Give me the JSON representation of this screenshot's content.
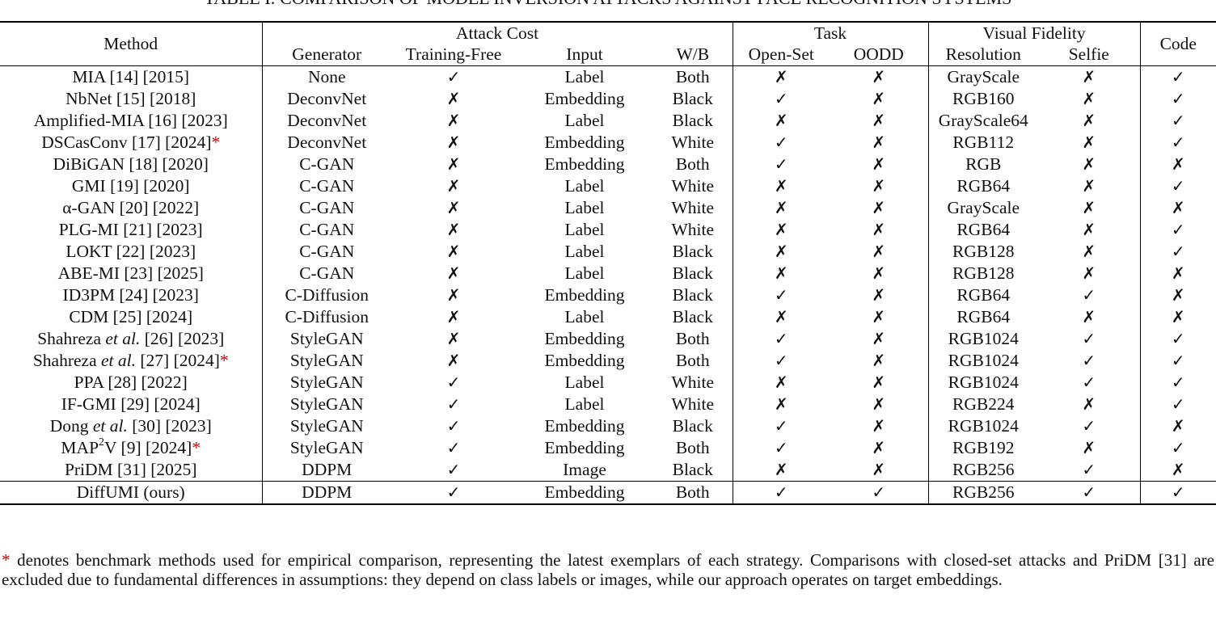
{
  "caption_fragment": "TABLE I: COMPARISON OF MODEL INVERSION ATTACKS AGAINST FACE RECOGNITION SYSTEMS",
  "headers": {
    "method": "Method",
    "attack_cost": "Attack Cost",
    "task": "Task",
    "visual_fidelity": "Visual Fidelity",
    "code": "Code",
    "generator": "Generator",
    "training_free": "Training-Free",
    "input": "Input",
    "wb": "W/B",
    "open_set": "Open-Set",
    "oodd": "OODD",
    "resolution": "Resolution",
    "selfie": "Selfie"
  },
  "symbols": {
    "yes": "✓",
    "no": "✗",
    "star": "*"
  },
  "rows": [
    {
      "m1": "MIA [14] [2015]",
      "gen": "None",
      "tf": "✓",
      "input": "Label",
      "wb": "Both",
      "open": "✗",
      "oodd": "✗",
      "res": "GrayScale",
      "selfie": "✗",
      "code": "✓"
    },
    {
      "m1": "NbNet [15] [2018]",
      "gen": "DeconvNet",
      "tf": "✗",
      "input": "Embedding",
      "wb": "Black",
      "open": "✓",
      "oodd": "✗",
      "res": "RGB160",
      "selfie": "✗",
      "code": "✓"
    },
    {
      "m1": "Amplified-MIA [16] [2023]",
      "gen": "DeconvNet",
      "tf": "✗",
      "input": "Label",
      "wb": "Black",
      "open": "✗",
      "oodd": "✗",
      "res": "GrayScale64",
      "selfie": "✗",
      "code": "✓"
    },
    {
      "m1": "DSCasConv [17] [2024]",
      "gen": "DeconvNet",
      "tf": "✗",
      "input": "Embedding",
      "wb": "White",
      "open": "✓",
      "oodd": "✗",
      "res": "RGB112",
      "selfie": "✗",
      "code": "✓"
    },
    {
      "m1": "DiBiGAN [18] [2020]",
      "gen": "C-GAN",
      "tf": "✗",
      "input": "Embedding",
      "wb": "Both",
      "open": "✓",
      "oodd": "✗",
      "res": "RGB",
      "selfie": "✗",
      "code": "✗"
    },
    {
      "m1": "GMI [19] [2020]",
      "gen": "C-GAN",
      "tf": "✗",
      "input": "Label",
      "wb": "White",
      "open": "✗",
      "oodd": "✗",
      "res": "RGB64",
      "selfie": "✗",
      "code": "✓"
    },
    {
      "m1": "α-GAN [20] [2022]",
      "gen": "C-GAN",
      "tf": "✗",
      "input": "Label",
      "wb": "White",
      "open": "✗",
      "oodd": "✗",
      "res": "GrayScale",
      "selfie": "✗",
      "code": "✗"
    },
    {
      "m1": "PLG-MI [21] [2023]",
      "gen": "C-GAN",
      "tf": "✗",
      "input": "Label",
      "wb": "White",
      "open": "✗",
      "oodd": "✗",
      "res": "RGB64",
      "selfie": "✗",
      "code": "✓"
    },
    {
      "m1": "LOKT [22] [2023]",
      "gen": "C-GAN",
      "tf": "✗",
      "input": "Label",
      "wb": "Black",
      "open": "✗",
      "oodd": "✗",
      "res": "RGB128",
      "selfie": "✗",
      "code": "✓"
    },
    {
      "m1": "ABE-MI [23] [2025]",
      "gen": "C-GAN",
      "tf": "✗",
      "input": "Label",
      "wb": "Black",
      "open": "✗",
      "oodd": "✗",
      "res": "RGB128",
      "selfie": "✗",
      "code": "✗"
    },
    {
      "m1": "ID3PM [24] [2023]",
      "gen": "C-Diffusion",
      "tf": "✗",
      "input": "Embedding",
      "wb": "Black",
      "open": "✓",
      "oodd": "✗",
      "res": "RGB64",
      "selfie": "✓",
      "code": "✗"
    },
    {
      "m1": "CDM [25] [2024]",
      "gen": "C-Diffusion",
      "tf": "✗",
      "input": "Label",
      "wb": "Black",
      "open": "✗",
      "oodd": "✗",
      "res": "RGB64",
      "selfie": "✗",
      "code": "✗"
    },
    {
      "m1": "Shahreza ",
      "m2": "et al.",
      "m3": " [26] [2023]",
      "gen": "StyleGAN",
      "tf": "✗",
      "input": "Embedding",
      "wb": "Both",
      "open": "✓",
      "oodd": "✗",
      "res": "RGB1024",
      "selfie": "✓",
      "code": "✓"
    },
    {
      "m1": "Shahreza ",
      "m2": "et al.",
      "m3": " [27] [2024]",
      "gen": "StyleGAN",
      "tf": "✗",
      "input": "Embedding",
      "wb": "Both",
      "open": "✓",
      "oodd": "✗",
      "res": "RGB1024",
      "selfie": "✓",
      "code": "✓"
    },
    {
      "m1": "PPA [28] [2022]",
      "gen": "StyleGAN",
      "tf": "✓",
      "input": "Label",
      "wb": "White",
      "open": "✗",
      "oodd": "✗",
      "res": "RGB1024",
      "selfie": "✓",
      "code": "✓"
    },
    {
      "m1": "IF-GMI [29] [2024]",
      "gen": "StyleGAN",
      "tf": "✓",
      "input": "Label",
      "wb": "White",
      "open": "✗",
      "oodd": "✗",
      "res": "RGB224",
      "selfie": "✗",
      "code": "✓"
    },
    {
      "m1": "Dong ",
      "m2": "et al.",
      "m3": " [30] [2023]",
      "gen": "StyleGAN",
      "tf": "✓",
      "input": "Embedding",
      "wb": "Black",
      "open": "✓",
      "oodd": "✗",
      "res": "RGB1024",
      "selfie": "✓",
      "code": "✗"
    },
    {
      "m1": "MAP",
      "sup": "2",
      "m3": "V [9] [2024]",
      "gen": "StyleGAN",
      "tf": "✓",
      "input": "Embedding",
      "wb": "Both",
      "open": "✓",
      "oodd": "✗",
      "res": "RGB192",
      "selfie": "✗",
      "code": "✓"
    },
    {
      "m1": "PriDM [31] [2025]",
      "gen": "DDPM",
      "tf": "✓",
      "input": "Image",
      "wb": "Black",
      "open": "✗",
      "oodd": "✗",
      "res": "RGB256",
      "selfie": "✓",
      "code": "✗"
    }
  ],
  "ours": {
    "m1": "DiffUMI (ours)",
    "gen": "DDPM",
    "tf": "✓",
    "input": "Embedding",
    "wb": "Both",
    "open": "✓",
    "oodd": "✓",
    "res": "RGB256",
    "selfie": "✓",
    "code": "✓"
  },
  "footnote": {
    "star": "*",
    "text": " denotes benchmark methods used for empirical comparison, representing the latest exemplars of each strategy. Comparisons with closed-set attacks and PriDM [31] are excluded due to fundamental differences in assumptions: they depend on class labels or images, while our approach operates on target embeddings."
  }
}
